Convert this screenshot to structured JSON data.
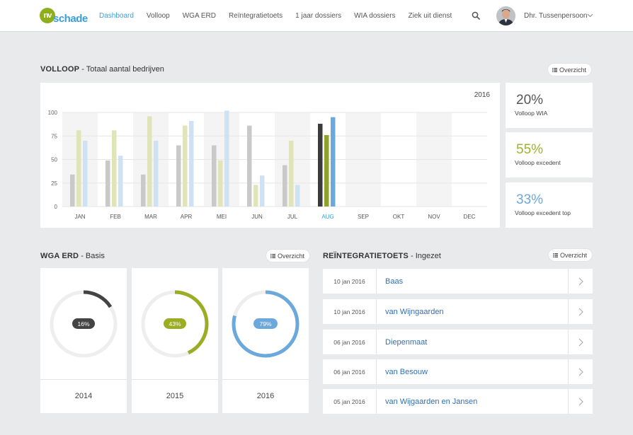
{
  "header": {
    "logo_mark": "nv",
    "logo_text": "schade",
    "nav": [
      "Dashboard",
      "Volloop",
      "WGA ERD",
      "Reïntegratietoets",
      "1 jaar dossiers",
      "WIA dossiers",
      "Ziek uit dienst"
    ],
    "active_nav": 0,
    "user_name": "Dhr. Tussenpersoon"
  },
  "volloop": {
    "title_bold": "VOLLOOP",
    "title_rest": " - Totaal aantal bedrijven",
    "overzicht_label": "Overzicht"
  },
  "chart_data": {
    "type": "bar",
    "title": "2016",
    "categories": [
      "JAN",
      "FEB",
      "MAR",
      "APR",
      "MEI",
      "JUN",
      "JUL",
      "AUG",
      "SEP",
      "OKT",
      "NOV",
      "DEC"
    ],
    "ylim": [
      0,
      100
    ],
    "yticks": [
      0,
      25,
      50,
      75,
      100
    ],
    "highlight_category": "AUG",
    "series": [
      {
        "values": [
          34,
          49,
          34,
          65,
          65,
          86,
          44,
          88,
          null,
          null,
          null,
          null
        ]
      },
      {
        "values": [
          81,
          81,
          96,
          86,
          49,
          23,
          70,
          76,
          null,
          null,
          null,
          null
        ]
      },
      {
        "values": [
          70,
          54,
          70,
          91,
          102,
          33,
          23,
          95,
          null,
          null,
          null,
          null
        ]
      }
    ],
    "grid": true,
    "colors": {
      "muted": [
        "#c9c9c9",
        "#dfe5b9",
        "#cfe2f3"
      ],
      "active": [
        "#3b3b3b",
        "#8fa32a",
        "#6ba8dc"
      ]
    }
  },
  "stats": [
    {
      "value": "20%",
      "label": "Volloop WIA",
      "color": "#555555"
    },
    {
      "value": "55%",
      "label": "Volloop excedent",
      "color": "#9db52a"
    },
    {
      "value": "33%",
      "label": "Volloop excedent top",
      "color": "#6ba8dc"
    }
  ],
  "wga": {
    "title_bold": "WGA ERD",
    "title_rest": " - Basis",
    "overzicht_label": "Overzicht",
    "donuts": [
      {
        "year": "2014",
        "label": "16%",
        "percent": 16,
        "color": "#444444"
      },
      {
        "year": "2015",
        "label": "43%",
        "percent": 43,
        "color": "#9aad23"
      },
      {
        "year": "2016",
        "label": "79%",
        "percent": 79,
        "color": "#6ba8dc"
      }
    ]
  },
  "reint": {
    "title_bold": "REÏNTEGRATIETOETS",
    "title_rest": " - Ingezet",
    "overzicht_label": "Overzicht",
    "rows": [
      {
        "date": "10 jan 2016",
        "name": "Baas"
      },
      {
        "date": "10 jan 2016",
        "name": "van Wijngaarden"
      },
      {
        "date": "06 jan 2016",
        "name": "Diepenmaat"
      },
      {
        "date": "06 jan 2016",
        "name": "van Besouw"
      },
      {
        "date": "05 jan 2016",
        "name": "van Wijgaarden en Jansen"
      }
    ]
  }
}
